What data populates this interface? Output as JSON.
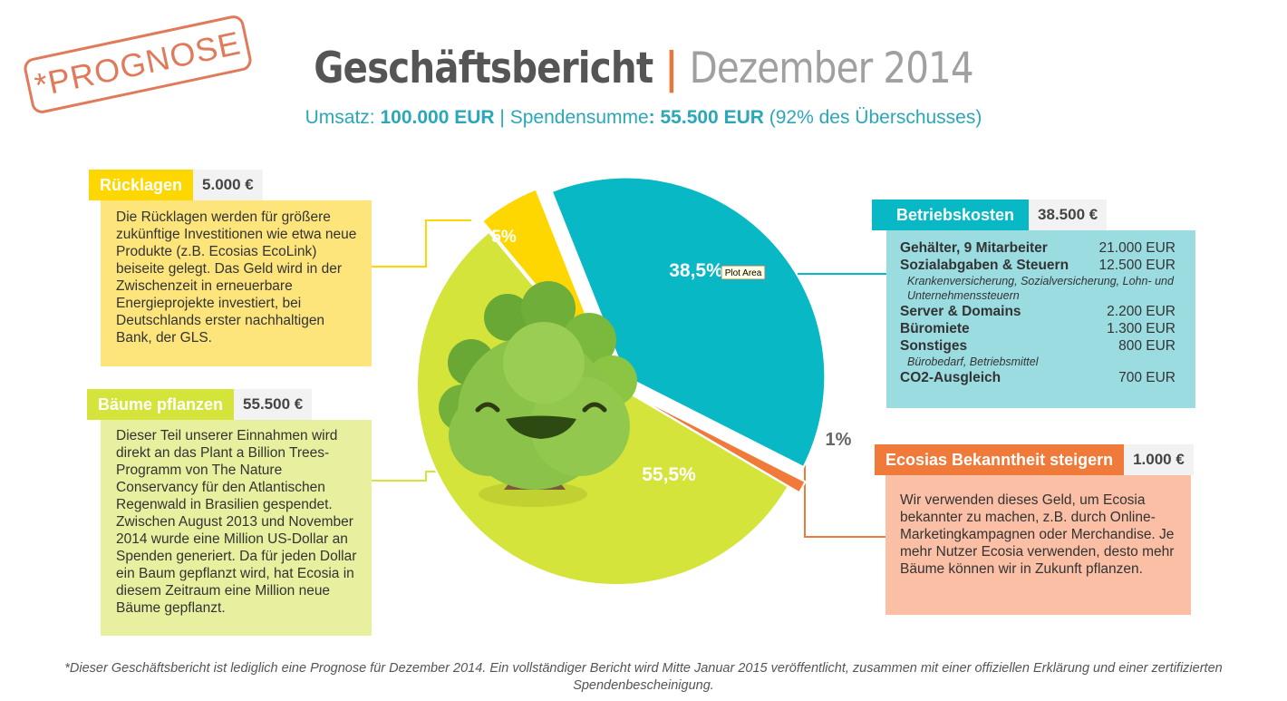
{
  "stamp": "*PROGNOSE",
  "title": {
    "main": "Geschäftsbericht",
    "separator": "|",
    "period": "Dezember 2014"
  },
  "subtitle": {
    "revenue_label": "Umsatz:",
    "revenue_value": "100.000 EUR",
    "separator": "|",
    "donation_label": "Spendensumme",
    "donation_value": ": 55.500   EUR",
    "surplus_note": "(92% des Überschusses)"
  },
  "colors": {
    "yellow": "#ffd700",
    "teal": "#08b8c4",
    "lime": "#d4e43a",
    "orange": "#f07a3a",
    "yellow_box": "#fde57c",
    "teal_box": "#9bdce1",
    "lime_box": "#e8f0a0",
    "orange_box": "#fbbfa6"
  },
  "chart_data": {
    "type": "pie",
    "title": "Geschäftsbericht Dezember 2014",
    "slices": [
      {
        "label": "Betriebskosten",
        "value": 38.5,
        "display": "38,5%"
      },
      {
        "label": "Ecosias Bekanntheit steigern",
        "value": 1,
        "display": "1%"
      },
      {
        "label": "Bäume pflanzen",
        "value": 55.5,
        "display": "55,5%"
      },
      {
        "label": "Rücklagen",
        "value": 5,
        "display": "5%"
      }
    ],
    "tooltip": "Plot Area"
  },
  "reserves": {
    "name": "Rücklagen",
    "amount": "5.000 €",
    "text": "Die Rücklagen werden für größere zukünftige Investitionen wie etwa neue Produkte (z.B. Ecosias EcoLink) beiseite gelegt. Das Geld wird in der Zwischenzeit in erneuerbare Energieprojekte investiert, bei Deutschlands erster nachhaltigen Bank, der GLS."
  },
  "trees": {
    "name": "Bäume pflanzen",
    "amount": "55.500 €",
    "text": "Dieser Teil unserer Einnahmen wird direkt an das Plant a Billion Trees-Programm von The Nature Conservancy für den Atlantischen Regenwald in Brasilien gespendet. Zwischen August 2013 und November 2014 wurde eine Million US-Dollar an Spenden generiert. Da für jeden Dollar ein Baum gepflanzt wird, hat Ecosia in diesem Zeitraum eine Million neue Bäume gepflanzt."
  },
  "costs": {
    "name": "Betriebskosten",
    "amount": "38.500 €",
    "rows": [
      {
        "label": "Gehälter, 9 Mitarbeiter",
        "value": "21.000 EUR"
      },
      {
        "label": "Sozialabgaben & Steuern",
        "value": "12.500 EUR"
      }
    ],
    "social_note": "Krankenversicherung, Sozialversicherung, Lohn- und Unternehmenssteuern",
    "rows2": [
      {
        "label": "Server & Domains",
        "value": "2.200 EUR"
      },
      {
        "label": "Büromiete",
        "value": "1.300 EUR"
      },
      {
        "label": "Sonstiges",
        "value": "800 EUR"
      }
    ],
    "misc_note": "Bürobedarf, Betriebsmittel",
    "rows3": [
      {
        "label": "CO2-Ausgleich",
        "value": "700 EUR"
      }
    ]
  },
  "awareness": {
    "name": "Ecosias Bekanntheit steigern",
    "amount": "1.000 €",
    "text": "Wir verwenden dieses Geld, um Ecosia bekannter zu machen, z.B. durch Online-Marketingkampagnen oder Merchandise. Je mehr Nutzer Ecosia verwenden, desto mehr Bäume können wir in Zukunft pflanzen."
  },
  "footnote": "*Dieser Geschäftsbericht ist lediglich eine Prognose für Dezember 2014. Ein vollständiger Bericht wird Mitte Januar 2015 veröffentlicht, zusammen mit einer offiziellen Erklärung und einer zertifizierten Spendenbescheinigung."
}
